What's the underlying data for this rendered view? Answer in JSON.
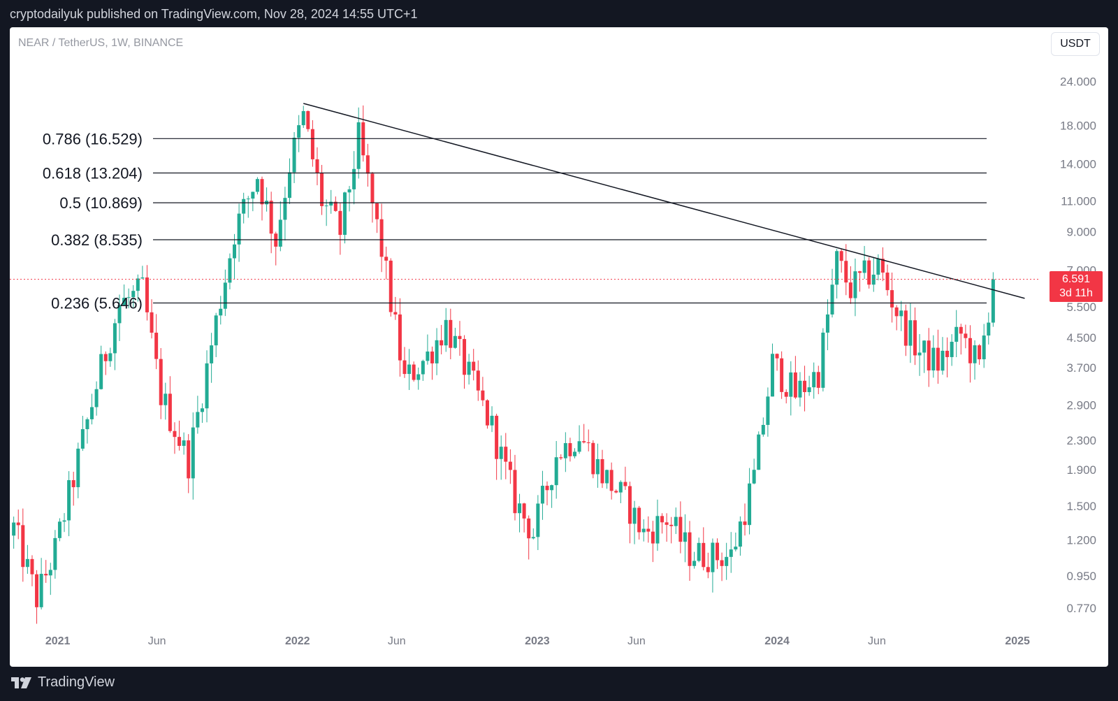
{
  "header": {
    "published_line": "cryptodailyuk published on TradingView.com, Nov 28, 2024 14:55 UTC+1"
  },
  "footer": {
    "brand": "TradingView",
    "logo_icon": "tradingview-logo-icon"
  },
  "toolbar": {
    "currency": "USDT"
  },
  "symbol": {
    "label": "NEAR / TetherUS, 1W, BINANCE"
  },
  "last_price": {
    "value": "6.591",
    "countdown": "3d 11h"
  },
  "colors": {
    "up": "#22ab94",
    "down": "#f23645",
    "line": "#131722",
    "axis_text": "#787b86"
  },
  "chart_data": {
    "type": "candlestick",
    "scale": "log",
    "timeframe": "1W",
    "x_range": [
      "2020-10-20",
      "2025-01-20"
    ],
    "y_range": [
      0.68,
      28.5
    ],
    "y_ticks": [
      "24.000",
      "18.000",
      "14.000",
      "11.000",
      "9.000",
      "7.000",
      "5.500",
      "4.500",
      "3.700",
      "2.900",
      "2.300",
      "1.900",
      "1.500",
      "1.200",
      "0.950",
      "0.770"
    ],
    "x_ticks": [
      {
        "label": "2021",
        "date": "2021-01-01",
        "bold": true
      },
      {
        "label": "Jun",
        "date": "2021-06-01",
        "bold": false
      },
      {
        "label": "2022",
        "date": "2022-01-01",
        "bold": true
      },
      {
        "label": "Jun",
        "date": "2022-06-01",
        "bold": false
      },
      {
        "label": "2023",
        "date": "2023-01-01",
        "bold": true
      },
      {
        "label": "Jun",
        "date": "2023-06-01",
        "bold": false
      },
      {
        "label": "2024",
        "date": "2024-01-01",
        "bold": true
      },
      {
        "label": "Jun",
        "date": "2024-06-01",
        "bold": false
      },
      {
        "label": "2025",
        "date": "2025-01-01",
        "bold": true
      }
    ],
    "fib_levels": [
      {
        "label": "0.786 (16.529)",
        "value": 16.529
      },
      {
        "label": "0.618 (13.204)",
        "value": 13.204
      },
      {
        "label": "0.5 (10.869)",
        "value": 10.869
      },
      {
        "label": "0.382 (8.535)",
        "value": 8.535
      },
      {
        "label": "0.236 (5.646)",
        "value": 5.646
      }
    ],
    "trendline": {
      "start": {
        "date": "2022-01-10",
        "price": 20.8
      },
      "end": {
        "date": "2025-01-12",
        "price": 5.82
      }
    },
    "last_price_line": 6.591,
    "path_dates": [
      "2020-10-26",
      "2020-11-30",
      "2020-12-28",
      "2021-01-25",
      "2021-03-01",
      "2021-04-05",
      "2021-05-10",
      "2021-06-07",
      "2021-07-19",
      "2021-08-30",
      "2021-09-27",
      "2021-11-01",
      "2021-11-29",
      "2021-12-20",
      "2022-01-10",
      "2022-02-07",
      "2022-03-07",
      "2022-04-04",
      "2022-05-09",
      "2022-06-13",
      "2022-07-18",
      "2022-08-15",
      "2022-09-19",
      "2022-10-24",
      "2022-11-28",
      "2022-12-26",
      "2023-01-30",
      "2023-03-06",
      "2023-04-10",
      "2023-05-15",
      "2023-06-12",
      "2023-07-17",
      "2023-08-21",
      "2023-09-25",
      "2023-10-23",
      "2023-11-27",
      "2023-12-25",
      "2024-01-29",
      "2024-03-04",
      "2024-04-01",
      "2024-04-22",
      "2024-06-03",
      "2024-07-08",
      "2024-08-05",
      "2024-09-02",
      "2024-10-07",
      "2024-11-04",
      "2024-11-25"
    ],
    "path_closes": [
      1.3,
      0.82,
      1.12,
      1.8,
      3.3,
      5.6,
      6.1,
      3.1,
      2.0,
      5.0,
      9.0,
      13.0,
      8.5,
      14.0,
      19.0,
      11.0,
      9.0,
      16.5,
      8.0,
      3.4,
      4.0,
      4.9,
      3.5,
      2.5,
      1.55,
      1.25,
      2.1,
      2.4,
      1.85,
      1.55,
      1.25,
      1.38,
      1.1,
      1.08,
      1.08,
      1.8,
      3.8,
      3.1,
      3.6,
      7.4,
      6.2,
      7.2,
      5.0,
      4.1,
      3.8,
      4.6,
      3.7,
      6.591
    ]
  }
}
